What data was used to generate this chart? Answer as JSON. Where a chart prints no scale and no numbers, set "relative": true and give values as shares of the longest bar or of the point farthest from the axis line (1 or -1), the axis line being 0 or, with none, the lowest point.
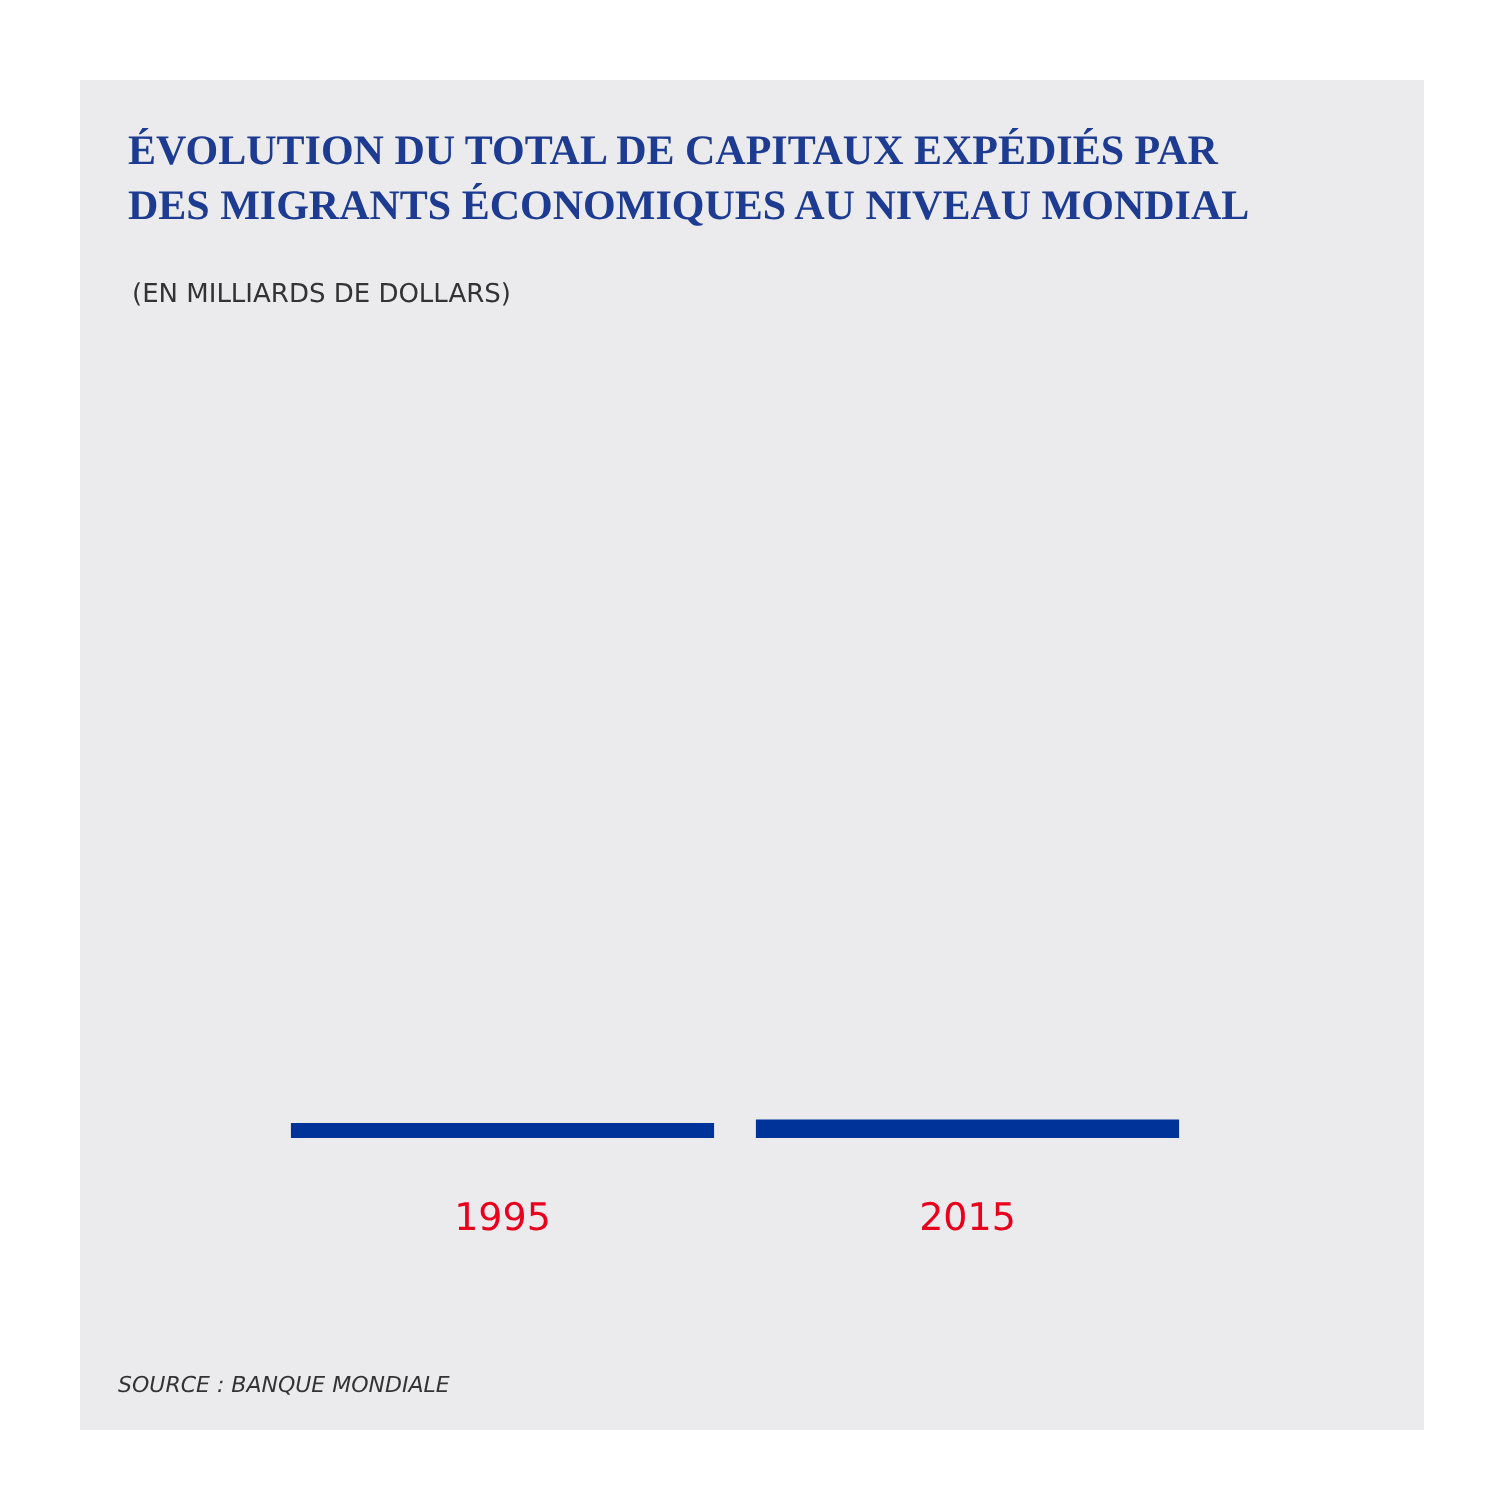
{
  "chart_data": {
    "type": "bar",
    "relative": true,
    "title": "ÉVOLUTION DU TOTAL DE CAPITAUX EXPÉDIÉS PAR\nDES MIGRANTS ÉCONOMIQUES AU NIVEAU MONDIAL",
    "subtitle": "(EN MILLIARDS DE DOLLARS)",
    "categories": [
      "1995",
      "2015"
    ],
    "values": [
      0.8,
      1
    ],
    "color": "#003399",
    "annotations": [
      "SOURCE : BANQUE MONDIALE"
    ]
  }
}
